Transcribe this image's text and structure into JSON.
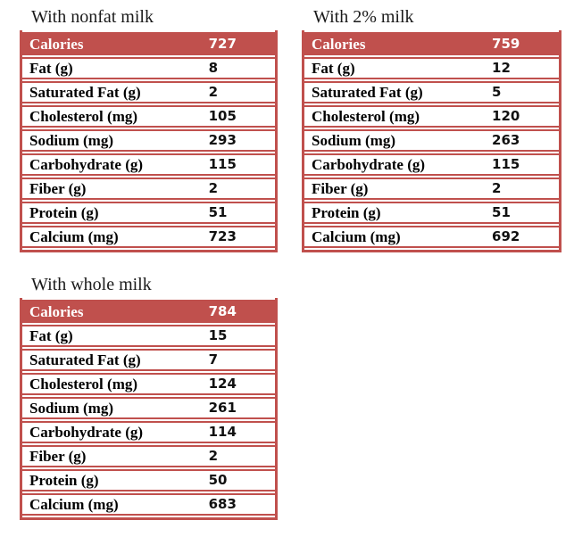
{
  "colors": {
    "accent": "#C0504D",
    "header_text": "#FFFFFF",
    "body_text": "#1A1A1A"
  },
  "chart_data": [
    {
      "type": "table",
      "title": "With nonfat milk",
      "header_row": {
        "label": "Calories",
        "value": "727"
      },
      "rows": [
        {
          "label": "Fat (g)",
          "value": "8"
        },
        {
          "label": "Saturated Fat (g)",
          "value": "2"
        },
        {
          "label": "Cholesterol (mg)",
          "value": "105"
        },
        {
          "label": "Sodium (mg)",
          "value": "293"
        },
        {
          "label": "Carbohydrate (g)",
          "value": "115"
        },
        {
          "label": "Fiber (g)",
          "value": "2"
        },
        {
          "label": "Protein (g)",
          "value": "51"
        },
        {
          "label": "Calcium (mg)",
          "value": "723"
        }
      ]
    },
    {
      "type": "table",
      "title": "With 2% milk",
      "header_row": {
        "label": "Calories",
        "value": "759"
      },
      "rows": [
        {
          "label": "Fat (g)",
          "value": "12"
        },
        {
          "label": "Saturated Fat (g)",
          "value": "5"
        },
        {
          "label": "Cholesterol (mg)",
          "value": "120"
        },
        {
          "label": "Sodium (mg)",
          "value": "263"
        },
        {
          "label": "Carbohydrate (g)",
          "value": "115"
        },
        {
          "label": "Fiber (g)",
          "value": "2"
        },
        {
          "label": "Protein (g)",
          "value": "51"
        },
        {
          "label": "Calcium (mg)",
          "value": "692"
        }
      ]
    },
    {
      "type": "table",
      "title": "With whole milk",
      "header_row": {
        "label": "Calories",
        "value": "784"
      },
      "rows": [
        {
          "label": "Fat (g)",
          "value": "15"
        },
        {
          "label": "Saturated Fat (g)",
          "value": "7"
        },
        {
          "label": "Cholesterol (mg)",
          "value": "124"
        },
        {
          "label": "Sodium (mg)",
          "value": "261"
        },
        {
          "label": "Carbohydrate (g)",
          "value": "114"
        },
        {
          "label": "Fiber (g)",
          "value": "2"
        },
        {
          "label": "Protein (g)",
          "value": "50"
        },
        {
          "label": "Calcium (mg)",
          "value": "683"
        }
      ]
    }
  ]
}
